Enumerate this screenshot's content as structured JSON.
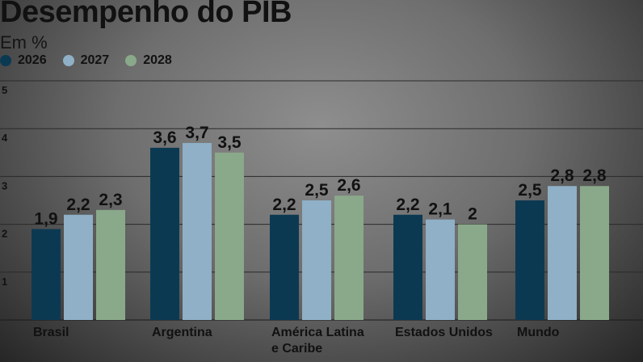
{
  "header": {
    "title": "Desempenho do PIB",
    "subtitle": "Em %"
  },
  "colors": {
    "s2026": "#0c3952",
    "s2027": "#8fb0c6",
    "s2028": "#8aa88a",
    "gridline": "#2a2a2a",
    "text": "#111111"
  },
  "chart_data": {
    "type": "bar",
    "title": "Desempenho do PIB",
    "subtitle": "Em %",
    "xlabel": "",
    "ylabel": "",
    "ylim": [
      0,
      5
    ],
    "yticks": [
      "1",
      "2",
      "3",
      "4",
      "5"
    ],
    "grid": true,
    "legend": "top-left",
    "categories": [
      "Brasil",
      "Argentina",
      "América Latina e Caribe",
      "Estados Unidos",
      "Mundo"
    ],
    "category_lines": [
      [
        "Brasil"
      ],
      [
        "Argentina"
      ],
      [
        "América Latina",
        "e Caribe"
      ],
      [
        "Estados Unidos"
      ],
      [
        "Mundo"
      ]
    ],
    "series": [
      {
        "name": "2026",
        "values": [
          1.9,
          3.6,
          2.2,
          2.2,
          2.5
        ],
        "labels": [
          "1,9",
          "3,6",
          "2,2",
          "2,2",
          "2,5"
        ]
      },
      {
        "name": "2027",
        "values": [
          2.2,
          3.7,
          2.5,
          2.1,
          2.8
        ],
        "labels": [
          "2,2",
          "3,7",
          "2,5",
          "2,1",
          "2,8"
        ]
      },
      {
        "name": "2028",
        "values": [
          2.3,
          3.5,
          2.6,
          2.0,
          2.8
        ],
        "labels": [
          "2,3",
          "3,5",
          "2,6",
          "2",
          "2,8"
        ]
      }
    ]
  }
}
